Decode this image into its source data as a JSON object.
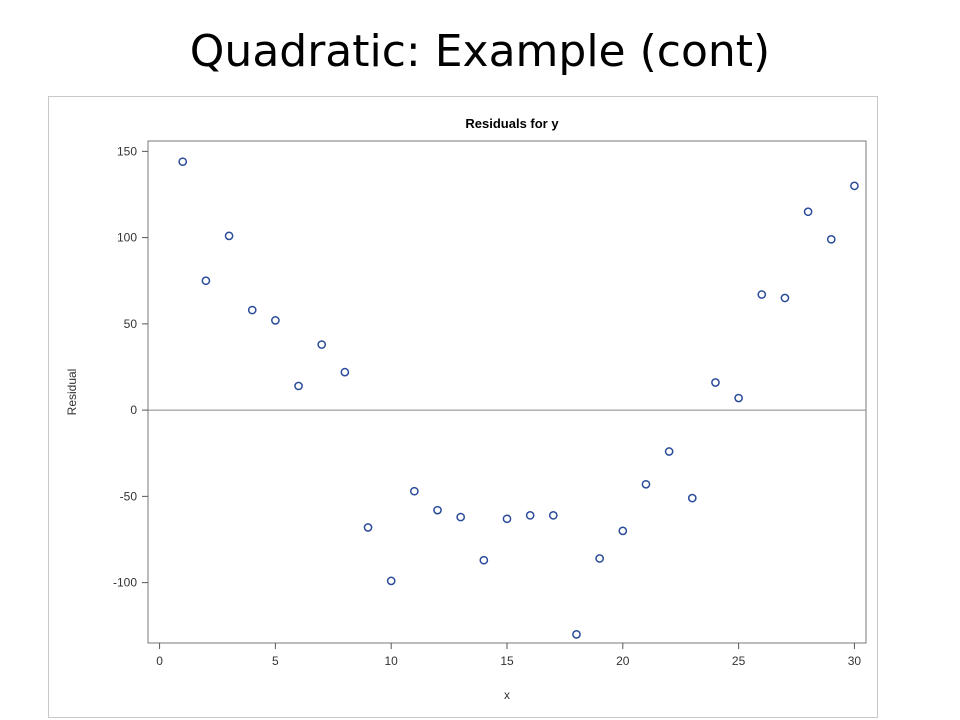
{
  "slide": {
    "title": "Quadratic: Example (cont)"
  },
  "chart_data": {
    "type": "scatter",
    "title": "Residuals for y",
    "xlabel": "x",
    "ylabel": "Residual",
    "xlim": [
      -0.5,
      30.5
    ],
    "ylim": [
      -135,
      156
    ],
    "x_ticks": [
      0,
      5,
      10,
      15,
      20,
      25,
      30
    ],
    "y_ticks": [
      -100,
      -50,
      0,
      50,
      100,
      150
    ],
    "reference_line_y": 0,
    "grid": false,
    "legend": "none",
    "marker_color": "#2a4a9a",
    "points": [
      {
        "x": 1,
        "y": 144
      },
      {
        "x": 2,
        "y": 75
      },
      {
        "x": 3,
        "y": 101
      },
      {
        "x": 4,
        "y": 58
      },
      {
        "x": 5,
        "y": 52
      },
      {
        "x": 6,
        "y": 14
      },
      {
        "x": 7,
        "y": 38
      },
      {
        "x": 8,
        "y": 22
      },
      {
        "x": 9,
        "y": -68
      },
      {
        "x": 10,
        "y": -99
      },
      {
        "x": 11,
        "y": -47
      },
      {
        "x": 12,
        "y": -58
      },
      {
        "x": 13,
        "y": -62
      },
      {
        "x": 14,
        "y": -87
      },
      {
        "x": 15,
        "y": -63
      },
      {
        "x": 16,
        "y": -61
      },
      {
        "x": 17,
        "y": -61
      },
      {
        "x": 18,
        "y": -130
      },
      {
        "x": 19,
        "y": -86
      },
      {
        "x": 20,
        "y": -70
      },
      {
        "x": 21,
        "y": -43
      },
      {
        "x": 22,
        "y": -24
      },
      {
        "x": 23,
        "y": -51
      },
      {
        "x": 24,
        "y": 16
      },
      {
        "x": 25,
        "y": 7
      },
      {
        "x": 26,
        "y": 67
      },
      {
        "x": 27,
        "y": 65
      },
      {
        "x": 28,
        "y": 115
      },
      {
        "x": 29,
        "y": 99
      },
      {
        "x": 30,
        "y": 130
      }
    ]
  }
}
